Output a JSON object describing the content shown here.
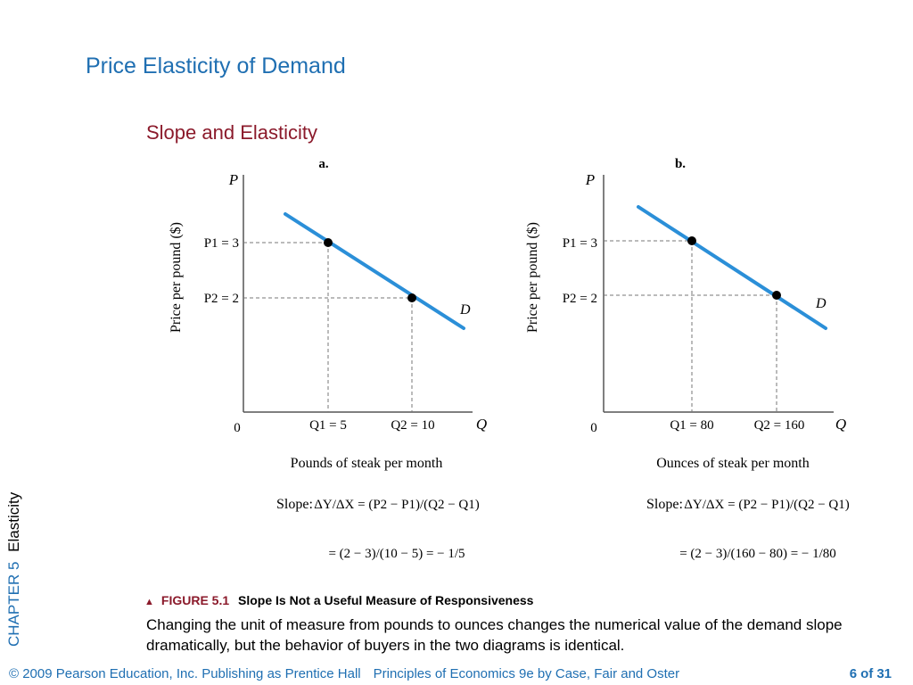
{
  "header": {
    "title": "Price Elasticity of Demand",
    "subtitle": "Slope and Elasticity"
  },
  "side_label": {
    "chapter": "CHAPTER 5",
    "topic": "Elasticity"
  },
  "panels": [
    {
      "label": "a.",
      "y_axis_symbol": "P",
      "y_axis_title": "Price per pound ($)",
      "x_axis_symbol": "Q",
      "origin": "0",
      "p1_label": "P1 = 3",
      "p2_label": "P2 = 2",
      "q1_label": "Q1 = 5",
      "q2_label": "Q2 = 10",
      "curve_label": "D",
      "x_axis_title": "Pounds of steak per month",
      "slope_word": "Slope:",
      "slope_line1": "ΔY/ΔX = (P2 − P1)/(Q2 − Q1)",
      "slope_line2": "= (2 − 3)/(10 − 5) = − 1/5",
      "p1": 3,
      "p2": 2,
      "q1": 5,
      "q2": 10
    },
    {
      "label": "b.",
      "y_axis_symbol": "P",
      "y_axis_title": "Price per pound ($)",
      "x_axis_symbol": "Q",
      "origin": "0",
      "p1_label": "P1 = 3",
      "p2_label": "P2 = 2",
      "q1_label": "Q1 = 80",
      "q2_label": "Q2 = 160",
      "curve_label": "D",
      "x_axis_title": "Ounces of steak per month",
      "slope_word": "Slope:",
      "slope_line1": "ΔY/ΔX = (P2 − P1)/(Q2 − Q1)",
      "slope_line2": "= (2 − 3)/(160 − 80) = − 1/80",
      "p1": 3,
      "p2": 2,
      "q1": 80,
      "q2": 160
    }
  ],
  "figure": {
    "marker": "▲",
    "number": "FIGURE 5.1",
    "title": "Slope Is Not a Useful Measure of Responsiveness",
    "caption": "Changing the unit of measure from pounds to ounces changes the numerical value of the demand slope dramatically, but the behavior of buyers in the two diagrams is identical."
  },
  "footer": {
    "copyright": "© 2009 Pearson Education, Inc. Publishing as Prentice Hall",
    "book": "Principles of Economics 9e by Case, Fair and Oster",
    "page_current": "6",
    "page_of": "of",
    "page_total": "31"
  },
  "colors": {
    "title": "#1f6fb2",
    "subtitle": "#8b1a2b",
    "demand_line": "#2b8fd8"
  }
}
